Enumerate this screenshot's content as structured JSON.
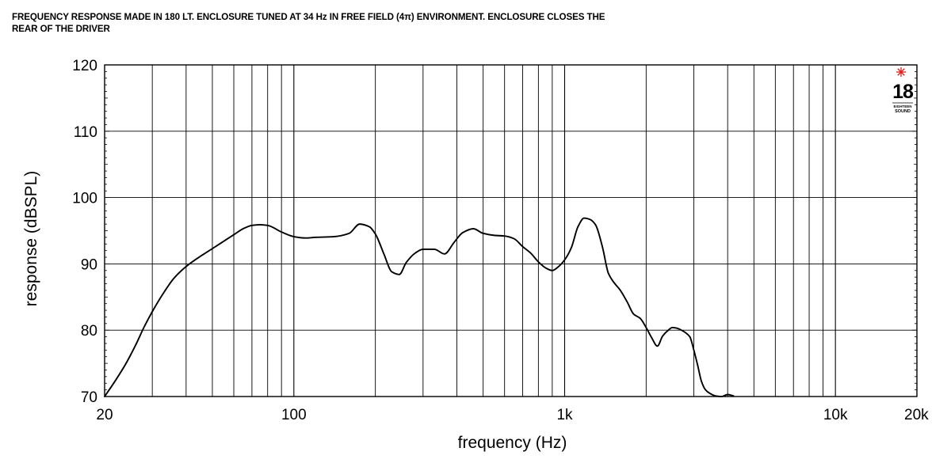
{
  "title_lines": [
    "FREQUENCY RESPONSE MADE IN 180 LT. ENCLOSURE TUNED AT 34 Hz IN FREE FIELD (4π) ENVIRONMENT. ENCLOSURE CLOSES THE",
    "REAR OF THE DRIVER"
  ],
  "logo": {
    "number": "18",
    "line1": "EIGHTEEN",
    "line2": "SOUND",
    "mark_color": "#e0201c"
  },
  "chart_data": {
    "type": "line",
    "title": "FREQUENCY RESPONSE MADE IN 180 LT. ENCLOSURE TUNED AT 34 Hz IN FREE FIELD (4π) ENVIRONMENT. ENCLOSURE CLOSES THE REAR OF THE DRIVER",
    "xlabel": "frequency (Hz)",
    "ylabel": "response (dBSPL)",
    "x_scale": "log",
    "xlim": [
      20,
      20000
    ],
    "ylim": [
      70,
      120
    ],
    "x_ticks": [
      20,
      100,
      1000,
      10000,
      20000
    ],
    "x_tick_labels": [
      "20",
      "100",
      "1k",
      "10k",
      "20k"
    ],
    "y_ticks": [
      70,
      80,
      90,
      100,
      110,
      120
    ],
    "y_tick_labels": [
      "70",
      "80",
      "90",
      "100",
      "110",
      "120"
    ],
    "grid": true,
    "line_color": "#000000",
    "series": [
      {
        "x": [
          20,
          22,
          24,
          26,
          28,
          30,
          33,
          36,
          40,
          45,
          50,
          55,
          60,
          65,
          70,
          75,
          80,
          90,
          100,
          110,
          120,
          140,
          160,
          175,
          190,
          200,
          215,
          230,
          245,
          260,
          280,
          300,
          330,
          360,
          390,
          420,
          460,
          500,
          550,
          600,
          650,
          700,
          750,
          800,
          850,
          900,
          950,
          1000,
          1060,
          1120,
          1180,
          1240,
          1300,
          1380,
          1450,
          1520,
          1600,
          1700,
          1800,
          1900,
          2000,
          2100,
          2200,
          2300,
          2400,
          2500,
          2600,
          2700,
          2800,
          2900,
          3000,
          3100,
          3200,
          3300,
          3400,
          3600,
          3800,
          4000,
          4200
        ],
        "y": [
          70,
          72.5,
          75,
          77.7,
          80.5,
          82.8,
          85.6,
          87.8,
          89.6,
          91.1,
          92.3,
          93.4,
          94.4,
          95.3,
          95.8,
          95.9,
          95.8,
          94.8,
          94.1,
          93.9,
          94.0,
          94.1,
          94.6,
          96.0,
          95.6,
          94.5,
          91.5,
          88.8,
          88.4,
          90.2,
          91.6,
          92.2,
          92.2,
          91.5,
          93.2,
          94.7,
          95.3,
          94.6,
          94.3,
          94.2,
          93.8,
          92.6,
          91.6,
          90.3,
          89.4,
          89.0,
          89.6,
          90.6,
          92.5,
          95.6,
          96.9,
          96.7,
          95.9,
          92.5,
          88.6,
          87.2,
          86.1,
          84.3,
          82.4,
          81.8,
          80.4,
          78.8,
          77.6,
          79.1,
          79.9,
          80.4,
          80.3,
          80.0,
          79.6,
          79.0,
          77.0,
          74.7,
          72.3,
          71.1,
          70.6,
          70.1,
          70.0,
          70.3,
          70.1
        ]
      }
    ]
  }
}
